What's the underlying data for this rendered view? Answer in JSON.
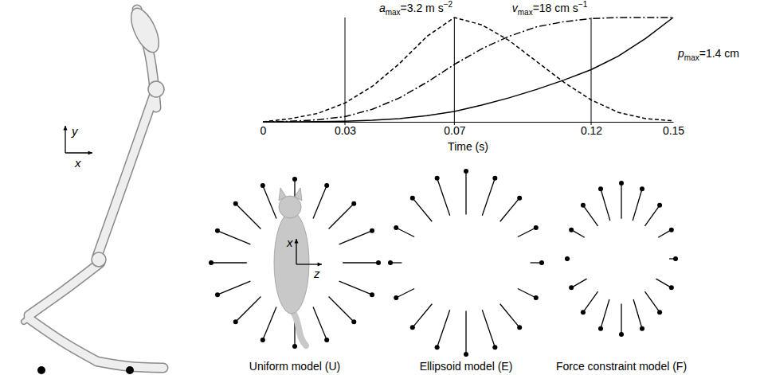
{
  "chart_data": {
    "type": "line",
    "x": [
      0,
      0.01,
      0.02,
      0.03,
      0.04,
      0.05,
      0.06,
      0.07,
      0.08,
      0.09,
      0.1,
      0.11,
      0.12,
      0.13,
      0.14,
      0.15
    ],
    "xlim": [
      0,
      0.15
    ],
    "xticks": [
      0,
      0.03,
      0.07,
      0.12,
      0.15
    ],
    "ylim": [
      0,
      1
    ],
    "tick_labels": "x",
    "x_label": "Time (s)",
    "vlines": [
      0.03,
      0.07,
      0.12
    ],
    "series": [
      {
        "label": {
          "base": "a",
          "sub": "max",
          "rest": "=3.2 m s",
          "sup": "−2"
        },
        "line_style": "dashed",
        "color": "#000000",
        "values": [
          0,
          0.03,
          0.08,
          0.18,
          0.34,
          0.56,
          0.82,
          1.0,
          0.93,
          0.78,
          0.58,
          0.38,
          0.21,
          0.09,
          0.03,
          0.01
        ]
      },
      {
        "label": {
          "base": "v",
          "sub": "max",
          "rest": "=18 cm s",
          "sup": "−1"
        },
        "line_style": "dashdot",
        "color": "#000000",
        "values": [
          0,
          0.005,
          0.02,
          0.05,
          0.12,
          0.23,
          0.38,
          0.55,
          0.7,
          0.82,
          0.91,
          0.96,
          0.99,
          1.0,
          1.0,
          1.0
        ]
      },
      {
        "label": {
          "base": "p",
          "sub": "max",
          "rest": "=1.4 cm"
        },
        "line_style": "solid",
        "color": "#000000",
        "values": [
          0,
          0,
          0.002,
          0.006,
          0.015,
          0.03,
          0.06,
          0.1,
          0.16,
          0.23,
          0.31,
          0.4,
          0.5,
          0.63,
          0.8,
          1.0
        ]
      }
    ]
  },
  "limb": {
    "axes": {
      "y": "y",
      "x": "x"
    }
  },
  "models": {
    "axes": {
      "x": "x",
      "z": "z"
    },
    "angles": [
      0,
      22.5,
      45,
      67.5,
      90,
      112.5,
      135,
      157.5,
      180,
      202.5,
      225,
      247.5,
      270,
      292.5,
      315,
      337.5
    ],
    "items": [
      {
        "label": "Uniform model (U)",
        "lengths": [
          1.4,
          1.4,
          1.4,
          1.4,
          1.4,
          1.4,
          1.4,
          1.4,
          1.4,
          1.4,
          1.4,
          1.4,
          1.4,
          1.4,
          1.4,
          1.4
        ]
      },
      {
        "label": "Ellipsoid model (E)",
        "lengths": [
          1.7,
          1.55,
          1.2,
          0.8,
          0.45,
          0.8,
          1.2,
          1.55,
          1.7,
          1.55,
          1.2,
          0.8,
          0.45,
          0.8,
          1.2,
          1.55
        ]
      },
      {
        "label": "Force constraint model (F)",
        "lengths": [
          1.4,
          1.3,
          1.0,
          0.6,
          0.25,
          0.7,
          1.0,
          1.2,
          1.2,
          1.2,
          1.0,
          0.7,
          0.1,
          0.6,
          1.0,
          1.3
        ]
      }
    ]
  }
}
